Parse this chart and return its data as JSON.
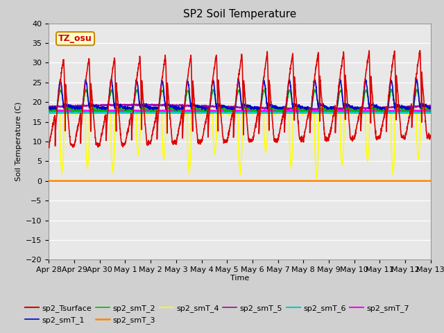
{
  "title": "SP2 Soil Temperature",
  "ylabel": "Soil Temperature (C)",
  "xlabel": "Time",
  "ylim": [
    -20,
    40
  ],
  "annotation": "TZ_osu",
  "annotation_color": "#cc0000",
  "annotation_bg": "#ffffcc",
  "annotation_border": "#cc8800",
  "fig_bg": "#d0d0d0",
  "plot_bg": "#e8e8e8",
  "series": {
    "sp2_Tsurface": {
      "color": "#dd0000",
      "lw": 1.2
    },
    "sp2_smT_1": {
      "color": "#0000cc",
      "lw": 1.2
    },
    "sp2_smT_2": {
      "color": "#00bb00",
      "lw": 1.2
    },
    "sp2_smT_3": {
      "color": "#ff8800",
      "lw": 1.8
    },
    "sp2_smT_4": {
      "color": "#ffff00",
      "lw": 1.2
    },
    "sp2_smT_5": {
      "color": "#aa00aa",
      "lw": 1.2
    },
    "sp2_smT_6": {
      "color": "#00cccc",
      "lw": 1.5
    },
    "sp2_smT_7": {
      "color": "#ff00ff",
      "lw": 1.5
    }
  },
  "num_days": 15,
  "tick_labels": [
    "Apr 28",
    "Apr 29",
    "Apr 30",
    "May 1",
    "May 2",
    "May 3",
    "May 4",
    "May 5",
    "May 6",
    "May 7",
    "May 8",
    "May 9",
    "May 10",
    "May 11",
    "May 12",
    "May 13"
  ]
}
